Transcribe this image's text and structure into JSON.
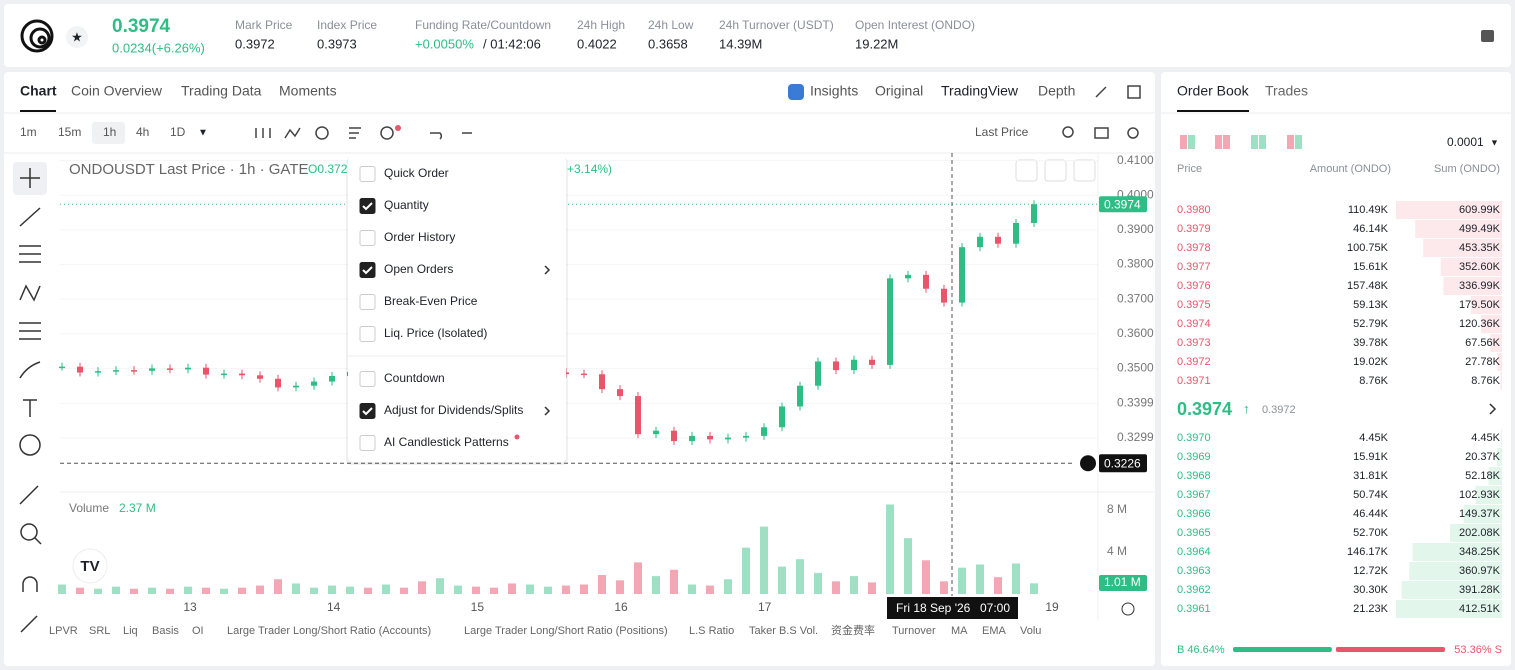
{
  "header": {
    "price": "0.3974",
    "change": "0.0234(+6.26%)",
    "stats": [
      {
        "label": "Mark Price",
        "value": "0.3972"
      },
      {
        "label": "Index Price",
        "value": "0.3973"
      },
      {
        "label": "Funding Rate/Countdown",
        "value": "+0.0050%",
        "extra": "/ 01:42:06"
      },
      {
        "label": "24h High",
        "value": "0.4022"
      },
      {
        "label": "24h Low",
        "value": "0.3658"
      },
      {
        "label": "24h Turnover (USDT)",
        "value": "14.39M"
      },
      {
        "label": "Open Interest (ONDO)",
        "value": "19.22M"
      }
    ]
  },
  "tabs": {
    "left": [
      "Chart",
      "Coin Overview",
      "Trading Data",
      "Moments"
    ],
    "right": [
      "Insights",
      "Original",
      "TradingView",
      "Depth"
    ]
  },
  "toolbar": {
    "intervals": [
      "1m",
      "15m",
      "1h",
      "4h",
      "1D"
    ],
    "price_source": "Last Price"
  },
  "chart_data": {
    "type": "candlestick",
    "title": "ONDOUSDT Last Price · 1h · GATE",
    "open_label": "O0.372",
    "change_label": "+3.14%)",
    "closes": [
      0.3505,
      0.3488,
      0.3492,
      0.3495,
      0.3493,
      0.35,
      0.3497,
      0.3502,
      0.3482,
      0.3485,
      0.348,
      0.347,
      0.3445,
      0.345,
      0.3462,
      0.3478,
      0.349,
      0.3485,
      0.3488,
      0.348,
      0.3475,
      0.3482,
      0.349,
      0.3486,
      0.3484,
      0.3478,
      0.3482,
      0.3488,
      0.3485,
      0.3483,
      0.344,
      0.342,
      0.331,
      0.332,
      0.329,
      0.3305,
      0.3295,
      0.33,
      0.3305,
      0.333,
      0.339,
      0.345,
      0.352,
      0.3495,
      0.3525,
      0.351,
      0.376,
      0.377,
      0.373,
      0.369,
      0.385,
      0.388,
      0.386,
      0.392,
      0.3974
    ],
    "up_color": "#2ebd85",
    "down_color": "#e8566c",
    "ylim": [
      0.3143,
      0.4122
    ],
    "yticks": [
      {
        "value": 0.41,
        "label": "0.4100"
      },
      {
        "value": 0.4,
        "label": "0.4000"
      },
      {
        "value": 0.39,
        "label": "0.3900"
      },
      {
        "value": 0.38,
        "label": "0.3800"
      },
      {
        "value": 0.37,
        "label": "0.3700"
      },
      {
        "value": 0.36,
        "label": "0.3600"
      },
      {
        "value": 0.35,
        "label": "0.3500"
      },
      {
        "value": 0.3399,
        "label": "0.3399"
      },
      {
        "value": 0.3299,
        "label": "0.3299"
      }
    ],
    "last_price": {
      "value": 0.3974,
      "label": "0.3974"
    },
    "crosshair": {
      "value": 0.3226,
      "label": "0.3226",
      "date": "Fri 18 Sep '26",
      "time": "07:00"
    },
    "xlim": [
      12.095,
      19.32
    ],
    "xticks": [
      13,
      14,
      15,
      16,
      17,
      19
    ],
    "volume": {
      "title": "Volume",
      "current": "2.37 M",
      "values": [
        0.9,
        0.6,
        0.5,
        0.7,
        0.5,
        0.6,
        0.5,
        0.7,
        0.6,
        0.5,
        0.6,
        0.8,
        1.4,
        1.0,
        0.6,
        0.8,
        0.7,
        0.6,
        0.9,
        0.6,
        1.2,
        1.5,
        0.8,
        0.7,
        0.6,
        1.0,
        0.9,
        0.7,
        0.8,
        0.9,
        1.8,
        1.3,
        3.0,
        1.7,
        2.3,
        0.9,
        0.8,
        1.4,
        4.4,
        6.4,
        2.6,
        3.3,
        2.0,
        1.2,
        1.7,
        1.1,
        8.5,
        5.3,
        3.2,
        1.2,
        2.5,
        2.8,
        1.6,
        2.9,
        1.01
      ],
      "last_label": "1.01 M",
      "ylim": [
        0,
        9.4
      ],
      "yticks": [
        {
          "value": 8,
          "label": "8 M"
        },
        {
          "value": 4,
          "label": "4 M"
        }
      ]
    }
  },
  "menu": [
    {
      "label": "Quick Order",
      "checked": false
    },
    {
      "label": "Quantity",
      "checked": true
    },
    {
      "label": "Order History",
      "checked": false
    },
    {
      "label": "Open Orders",
      "checked": true,
      "submenu": true
    },
    {
      "label": "Break-Even Price",
      "checked": false
    },
    {
      "label": "Liq. Price (Isolated)",
      "checked": false
    },
    {
      "label": "Countdown",
      "checked": false
    },
    {
      "label": "Adjust for Dividends/Splits",
      "checked": true,
      "submenu": true
    },
    {
      "label": "AI Candlestick Patterns",
      "checked": false
    }
  ],
  "indicators": [
    "LPVR",
    "SRL",
    "Liq",
    "Basis",
    "OI",
    "Large Trader Long/Short Ratio (Accounts)",
    "Large Trader Long/Short Ratio (Positions)",
    "L.S Ratio",
    "Taker B.S Vol.",
    "资金费率",
    "Turnover",
    "MA",
    "EMA",
    "Volu"
  ],
  "order_book": {
    "tabs": [
      "Order Book",
      "Trades"
    ],
    "precision": "0.0001",
    "headers": [
      "Price",
      "Amount (ONDO)",
      "Sum (ONDO)"
    ],
    "asks": [
      [
        "0.3980",
        "110.49K",
        "609.99K"
      ],
      [
        "0.3979",
        "46.14K",
        "499.49K"
      ],
      [
        "0.3978",
        "100.75K",
        "453.35K"
      ],
      [
        "0.3977",
        "15.61K",
        "352.60K"
      ],
      [
        "0.3976",
        "157.48K",
        "336.99K"
      ],
      [
        "0.3975",
        "59.13K",
        "179.50K"
      ],
      [
        "0.3974",
        "52.79K",
        "120.36K"
      ],
      [
        "0.3973",
        "39.78K",
        "67.56K"
      ],
      [
        "0.3972",
        "19.02K",
        "27.78K"
      ],
      [
        "0.3971",
        "8.76K",
        "8.76K"
      ]
    ],
    "mid": "0.3974",
    "mark": "0.3972",
    "bids": [
      [
        "0.3970",
        "4.45K",
        "4.45K"
      ],
      [
        "0.3969",
        "15.91K",
        "20.37K"
      ],
      [
        "0.3968",
        "31.81K",
        "52.18K"
      ],
      [
        "0.3967",
        "50.74K",
        "102.93K"
      ],
      [
        "0.3966",
        "46.44K",
        "149.37K"
      ],
      [
        "0.3965",
        "52.70K",
        "202.08K"
      ],
      [
        "0.3964",
        "146.17K",
        "348.25K"
      ],
      [
        "0.3963",
        "12.72K",
        "360.97K"
      ],
      [
        "0.3962",
        "30.30K",
        "391.28K"
      ],
      [
        "0.3961",
        "21.23K",
        "412.51K"
      ]
    ],
    "buy": {
      "value": 46.64,
      "label": "B 46.64%"
    },
    "sell": {
      "value": 53.36,
      "label": "53.36% S"
    }
  }
}
